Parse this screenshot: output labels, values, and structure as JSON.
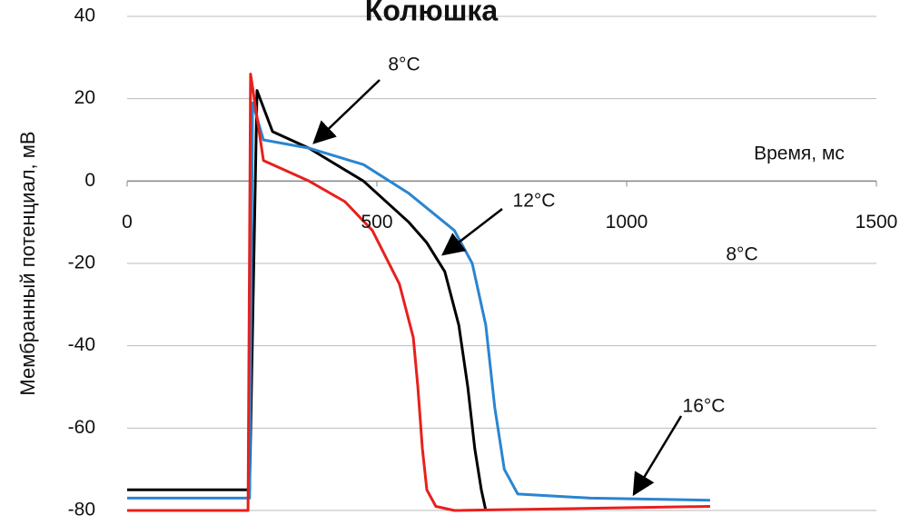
{
  "chart_data": {
    "type": "line",
    "title": "Колюшка",
    "y_label": "Мембранный потенциал, мВ",
    "x_label": "Время, мс",
    "annotations": [
      "8°C",
      "12°C",
      "8°C",
      "16°C"
    ],
    "xlim": [
      0,
      1500
    ],
    "ylim": [
      -80,
      40
    ],
    "xticks": [
      0,
      500,
      1000,
      1500
    ],
    "yticks": [
      -80,
      -60,
      -40,
      -20,
      0,
      20,
      40
    ],
    "grid": true,
    "series": [
      {
        "color": "#000000",
        "x": [
          0,
          245,
          260,
          291,
          364,
          473,
          564,
          600,
          636,
          664,
          682,
          696,
          709,
          718
        ],
        "values": [
          -75,
          -75,
          22,
          12,
          8,
          0,
          -10,
          -15,
          -22,
          -35,
          -50,
          -65,
          -75,
          -80
        ]
      },
      {
        "color": "#2a85d0",
        "x": [
          0,
          245,
          251,
          273,
          364,
          473,
          564,
          655,
          691,
          718,
          736,
          755,
          782,
          927,
          1167
        ],
        "values": [
          -77,
          -77,
          19,
          10,
          8,
          4,
          -3,
          -12,
          -20,
          -35,
          -55,
          -70,
          -76,
          -77,
          -77.5
        ]
      },
      {
        "color": "#e8201c",
        "x": [
          0,
          242,
          247,
          273,
          364,
          436,
          491,
          545,
          573,
          582,
          591,
          600,
          618,
          655,
          1167
        ],
        "values": [
          -80,
          -80,
          26,
          5,
          0,
          -5,
          -12,
          -25,
          -38,
          -50,
          -65,
          -75,
          -79,
          -80,
          -79
        ]
      }
    ]
  }
}
